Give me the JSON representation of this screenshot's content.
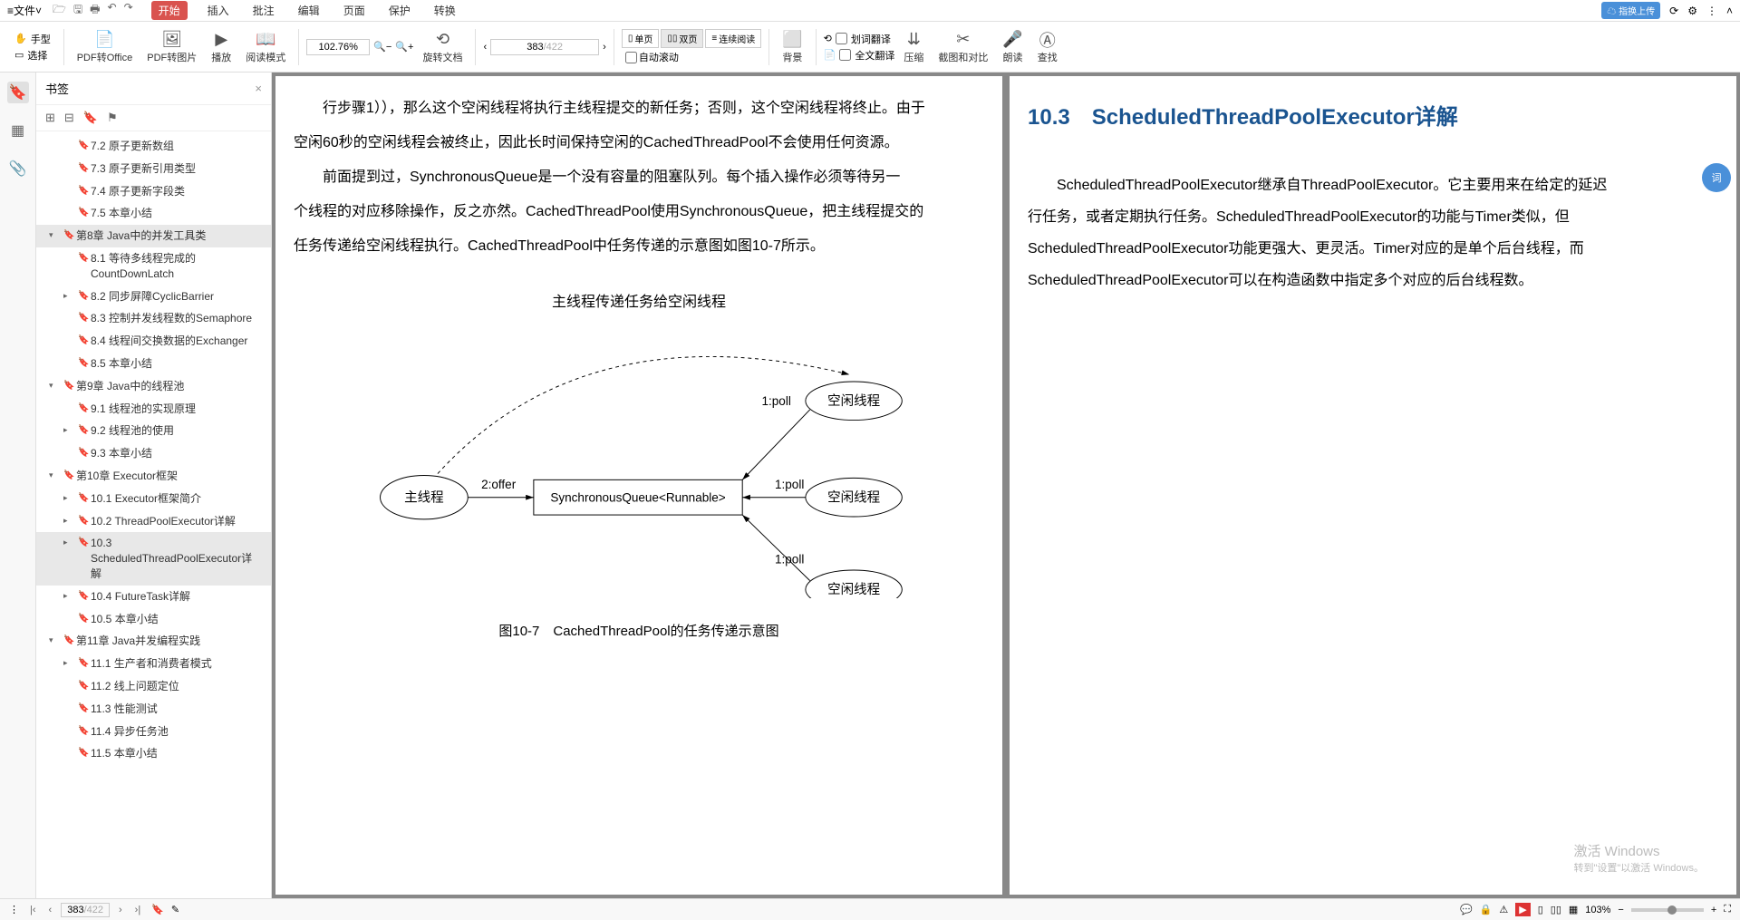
{
  "menubar": {
    "file": "文件",
    "tabs": [
      "开始",
      "插入",
      "批注",
      "编辑",
      "页面",
      "保护",
      "转换"
    ],
    "active_tab": 0,
    "upload_badge": "指换上传"
  },
  "toolbar": {
    "mode_hand": "手型",
    "mode_select": "选择",
    "pdf_office": "PDF转Office",
    "pdf_image": "PDF转图片",
    "play": "播放",
    "read_mode": "阅读模式",
    "zoom": "102.76%",
    "rotate": "旋转文档",
    "page_current": "383",
    "page_total": "/422",
    "single_page": "单页",
    "double_page": "双页",
    "continuous": "连续阅读",
    "auto_scroll": "自动滚动",
    "background": "背景",
    "word_trans": "划词翻译",
    "full_trans": "全文翻译",
    "compress": "压缩",
    "crop": "截图和对比",
    "read_aloud": "朗读",
    "find": "查找"
  },
  "bookmarks": {
    "title": "书签",
    "items": [
      {
        "label": "7.2 原子更新数组",
        "level": 1
      },
      {
        "label": "7.3 原子更新引用类型",
        "level": 1
      },
      {
        "label": "7.4 原子更新字段类",
        "level": 1
      },
      {
        "label": "7.5 本章小结",
        "level": 1
      },
      {
        "label": "第8章 Java中的并发工具类",
        "level": 0,
        "arrow": "▾",
        "selected": true
      },
      {
        "label": "8.1 等待多线程完成的CountDownLatch",
        "level": 1
      },
      {
        "label": "8.2 同步屏障CyclicBarrier",
        "level": 1,
        "arrow": "▸"
      },
      {
        "label": "8.3 控制并发线程数的Semaphore",
        "level": 1
      },
      {
        "label": "8.4 线程间交换数据的Exchanger",
        "level": 1
      },
      {
        "label": "8.5 本章小结",
        "level": 1
      },
      {
        "label": "第9章 Java中的线程池",
        "level": 0,
        "arrow": "▾"
      },
      {
        "label": "9.1 线程池的实现原理",
        "level": 1
      },
      {
        "label": "9.2 线程池的使用",
        "level": 1,
        "arrow": "▸"
      },
      {
        "label": "9.3 本章小结",
        "level": 1
      },
      {
        "label": "第10章 Executor框架",
        "level": 0,
        "arrow": "▾"
      },
      {
        "label": "10.1 Executor框架简介",
        "level": 1,
        "arrow": "▸"
      },
      {
        "label": "10.2 ThreadPoolExecutor详解",
        "level": 1,
        "arrow": "▸"
      },
      {
        "label": "10.3 ScheduledThreadPoolExecutor详解",
        "level": 1,
        "arrow": "▸",
        "selected": true
      },
      {
        "label": "10.4 FutureTask详解",
        "level": 1,
        "arrow": "▸"
      },
      {
        "label": "10.5 本章小结",
        "level": 1
      },
      {
        "label": "第11章 Java并发编程实践",
        "level": 0,
        "arrow": "▾"
      },
      {
        "label": "11.1 生产者和消费者模式",
        "level": 1,
        "arrow": "▸"
      },
      {
        "label": "11.2 线上问题定位",
        "level": 1
      },
      {
        "label": "11.3 性能测试",
        "level": 1
      },
      {
        "label": "11.4 异步任务池",
        "level": 1
      },
      {
        "label": "11.5 本章小结",
        "level": 1
      }
    ]
  },
  "page_left": {
    "p1": "行步骤1）），那么这个空闲线程将执行主线程提交的新任务；否则，这个空闲线程将终止。由于",
    "p2": "空闲60秒的空闲线程会被终止，因此长时间保持空闲的CachedThreadPool不会使用任何资源。",
    "p3": "前面提到过，SynchronousQueue是一个没有容量的阻塞队列。每个插入操作必须等待另一",
    "p4": "个线程的对应移除操作，反之亦然。CachedThreadPool使用SynchronousQueue，把主线程提交的",
    "p5": "任务传递给空闲线程执行。CachedThreadPool中任务传递的示意图如图10-7所示。",
    "diagram": {
      "title": "主线程传递任务给空闲线程",
      "main_thread": "主线程",
      "queue": "SynchronousQueue<Runnable>",
      "idle_thread": "空闲线程",
      "edge_offer": "2:offer",
      "edge_poll": "1:poll",
      "caption": "图10-7　CachedThreadPool的任务传递示意图"
    }
  },
  "page_right": {
    "section_no": "10.3",
    "section_title": "ScheduledThreadPoolExecutor详解",
    "p1": "ScheduledThreadPoolExecutor继承自ThreadPoolExecutor。它主要用来在给定的延迟",
    "p2": "行任务，或者定期执行任务。ScheduledThreadPoolExecutor的功能与Timer类似，但",
    "p3": "ScheduledThreadPoolExecutor功能更强大、更灵活。Timer对应的是单个后台线程，而",
    "p4": "ScheduledThreadPoolExecutor可以在构造函数中指定多个对应的后台线程数。"
  },
  "statusbar": {
    "page_current": "383",
    "page_total": "/422",
    "zoom": "103%"
  },
  "watermark": {
    "line1": "激活 Windows",
    "line2": "转到\"设置\"以激活 Windows。"
  }
}
